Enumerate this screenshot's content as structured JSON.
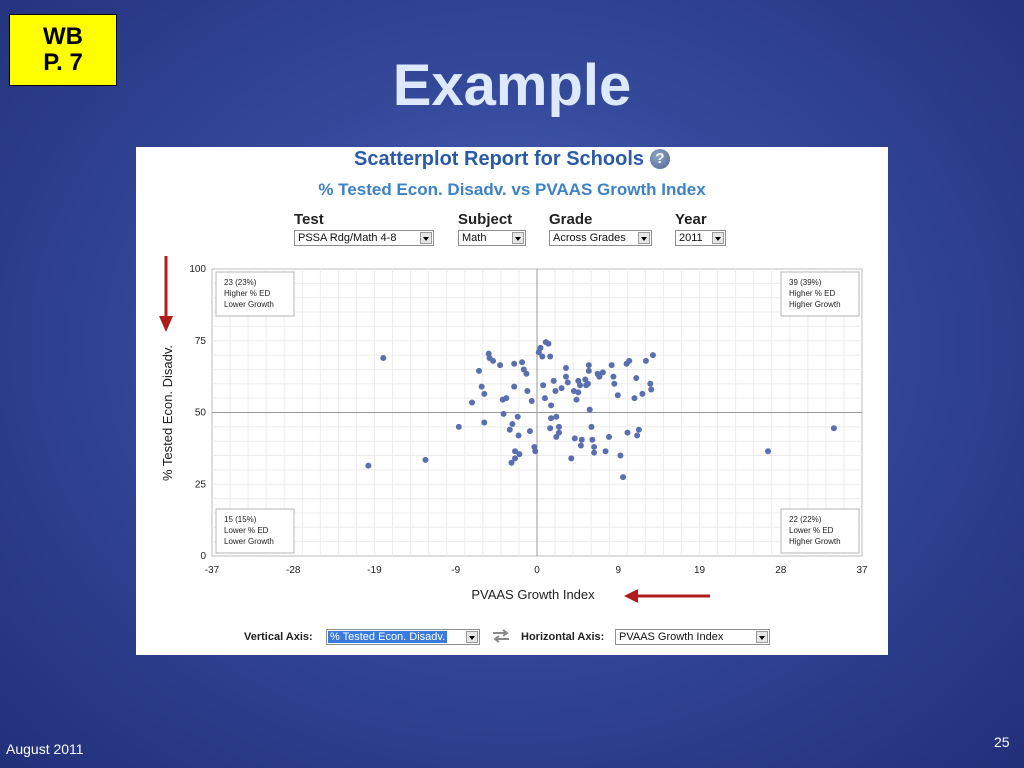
{
  "badge": {
    "line1": "WB",
    "line2": "P. 7"
  },
  "slide": {
    "title": "Example",
    "date": "August 2011",
    "page_number": "25"
  },
  "report": {
    "title": "Scatterplot Report for Schools",
    "help_icon": "question-mark-icon",
    "subtitle": "% Tested Econ. Disadv. vs PVAAS Growth Index"
  },
  "filters": {
    "test": {
      "label": "Test",
      "value": "PSSA Rdg/Math 4-8"
    },
    "subject": {
      "label": "Subject",
      "value": "Math"
    },
    "grade": {
      "label": "Grade",
      "value": "Across Grades"
    },
    "year": {
      "label": "Year",
      "value": "2011"
    }
  },
  "footer": {
    "vertical_label": "Vertical Axis:",
    "vertical_value": "% Tested Econ. Disadv.",
    "swap_icon": "swap-arrows-icon",
    "horizontal_label": "Horizontal Axis:",
    "horizontal_value": "PVAAS Growth Index"
  },
  "colors": {
    "point": "#5a6fb0",
    "arrow": "#b01c1c",
    "title_blue": "#2a5ba8",
    "subtitle_blue": "#3d82c6"
  },
  "chart_data": {
    "type": "scatter",
    "title": "",
    "xlabel": "PVAAS Growth Index",
    "ylabel": "% Tested Econ. Disadv.",
    "xlim": [
      -37,
      37
    ],
    "ylim": [
      0,
      100
    ],
    "x_ticks": [
      "-37",
      "-28",
      "-19",
      "-9",
      "0",
      "9",
      "19",
      "28",
      "37"
    ],
    "y_ticks": [
      "100",
      "75",
      "50",
      "25",
      "0"
    ],
    "grid": true,
    "quadrant_lines": {
      "x": 0,
      "y": 50
    },
    "quadrants": [
      {
        "position": "top-left",
        "count": "23 (23%)",
        "line1": "Higher % ED",
        "line2": "Lower Growth"
      },
      {
        "position": "top-right",
        "count": "39 (39%)",
        "line1": "Higher % ED",
        "line2": "Higher Growth"
      },
      {
        "position": "bottom-left",
        "count": "15 (15%)",
        "line1": "Lower % ED",
        "line2": "Lower Growth"
      },
      {
        "position": "bottom-right",
        "count": "22 (22%)",
        "line1": "Lower % ED",
        "line2": "Higher Growth"
      }
    ],
    "points": [
      [
        -17.5,
        69
      ],
      [
        -19.2,
        31.5
      ],
      [
        -12.7,
        33.5
      ],
      [
        -8.9,
        45
      ],
      [
        -7.4,
        53.5
      ],
      [
        -6.6,
        64.5
      ],
      [
        -6.3,
        59
      ],
      [
        -6.0,
        56.5
      ],
      [
        -6.0,
        46.5
      ],
      [
        -5.5,
        70.5
      ],
      [
        -5.4,
        69
      ],
      [
        -5.0,
        68
      ],
      [
        -4.2,
        66.5
      ],
      [
        -3.9,
        54.5
      ],
      [
        -3.8,
        49.5
      ],
      [
        -3.5,
        55
      ],
      [
        -3.1,
        44
      ],
      [
        -2.8,
        46
      ],
      [
        -2.6,
        59
      ],
      [
        -2.6,
        67
      ],
      [
        -2.5,
        36.5
      ],
      [
        -2.5,
        34
      ],
      [
        -2.9,
        32.5
      ],
      [
        -2.2,
        48.5
      ],
      [
        -2.1,
        42
      ],
      [
        -2.0,
        35.5
      ],
      [
        -1.7,
        67.5
      ],
      [
        -1.5,
        65
      ],
      [
        -1.2,
        63.5
      ],
      [
        -1.1,
        57.5
      ],
      [
        -0.8,
        43.5
      ],
      [
        -0.6,
        54
      ],
      [
        -0.3,
        38
      ],
      [
        -0.2,
        36.5
      ],
      [
        0.2,
        71
      ],
      [
        0.4,
        72.5
      ],
      [
        0.6,
        69.5
      ],
      [
        0.7,
        59.5
      ],
      [
        0.9,
        55
      ],
      [
        1.0,
        74.5
      ],
      [
        1.3,
        74
      ],
      [
        1.5,
        69.5
      ],
      [
        1.6,
        48
      ],
      [
        1.5,
        44.5
      ],
      [
        1.6,
        52.5
      ],
      [
        1.9,
        61
      ],
      [
        2.1,
        57.5
      ],
      [
        2.2,
        41.5
      ],
      [
        2.2,
        48.5
      ],
      [
        2.5,
        45
      ],
      [
        2.5,
        43
      ],
      [
        2.8,
        58.5
      ],
      [
        3.3,
        62.5
      ],
      [
        3.3,
        65.5
      ],
      [
        3.5,
        60.5
      ],
      [
        3.9,
        34
      ],
      [
        4.2,
        57.5
      ],
      [
        4.3,
        41
      ],
      [
        4.7,
        61
      ],
      [
        4.9,
        59.5
      ],
      [
        5.0,
        38.5
      ],
      [
        4.5,
        54.5
      ],
      [
        4.7,
        57
      ],
      [
        5.1,
        40.5
      ],
      [
        5.5,
        61.5
      ],
      [
        5.6,
        59.5
      ],
      [
        5.9,
        66.5
      ],
      [
        5.9,
        64.5
      ],
      [
        5.8,
        60
      ],
      [
        6.0,
        51
      ],
      [
        6.2,
        45
      ],
      [
        6.3,
        40.5
      ],
      [
        6.5,
        38
      ],
      [
        6.5,
        36
      ],
      [
        6.9,
        63.5
      ],
      [
        7.1,
        62.5
      ],
      [
        7.5,
        64
      ],
      [
        7.8,
        36.5
      ],
      [
        8.2,
        41.5
      ],
      [
        8.5,
        66.5
      ],
      [
        8.7,
        62.5
      ],
      [
        8.8,
        60
      ],
      [
        9.2,
        56
      ],
      [
        9.5,
        35
      ],
      [
        10.2,
        67
      ],
      [
        10.5,
        68
      ],
      [
        10.3,
        43
      ],
      [
        11.1,
        55
      ],
      [
        11.3,
        62
      ],
      [
        11.4,
        42
      ],
      [
        11.6,
        44
      ],
      [
        12.0,
        56.5
      ],
      [
        12.4,
        68
      ],
      [
        12.9,
        60
      ],
      [
        13.0,
        58
      ],
      [
        13.2,
        70
      ],
      [
        9.8,
        27.5
      ],
      [
        26.3,
        36.5
      ],
      [
        33.8,
        44.5
      ]
    ]
  }
}
